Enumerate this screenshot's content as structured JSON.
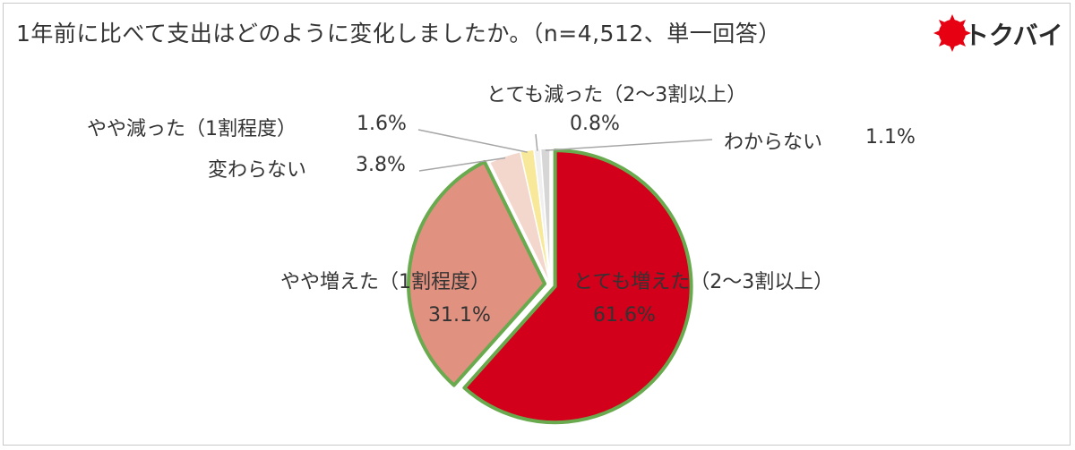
{
  "title": "1年前に比べて支出はどのように変化しましたか。（n=4,512、単一回答）",
  "logo": {
    "text": "トクバイ",
    "icon": "red-sun-burst-icon",
    "color": "#e60012"
  },
  "chart_data": {
    "type": "pie",
    "categories": [
      "とても増えた（2～3割以上）",
      "やや増えた（1割程度）",
      "変わらない",
      "やや減った（1割程度）",
      "とても減った（2～3割以上）",
      "わからない"
    ],
    "values": [
      61.6,
      31.1,
      3.8,
      1.6,
      0.8,
      1.1
    ],
    "labels": [
      "61.6%",
      "31.1%",
      "3.8%",
      "1.6%",
      "0.8%",
      "1.1%"
    ],
    "colors": [
      "#d2001a",
      "#e0917f",
      "#f3d6cc",
      "#f7e89a",
      "#f0f0f0",
      "#d6d6d6"
    ],
    "highlight_color": "#6aaa4f",
    "highlighted": [
      0,
      1
    ]
  }
}
